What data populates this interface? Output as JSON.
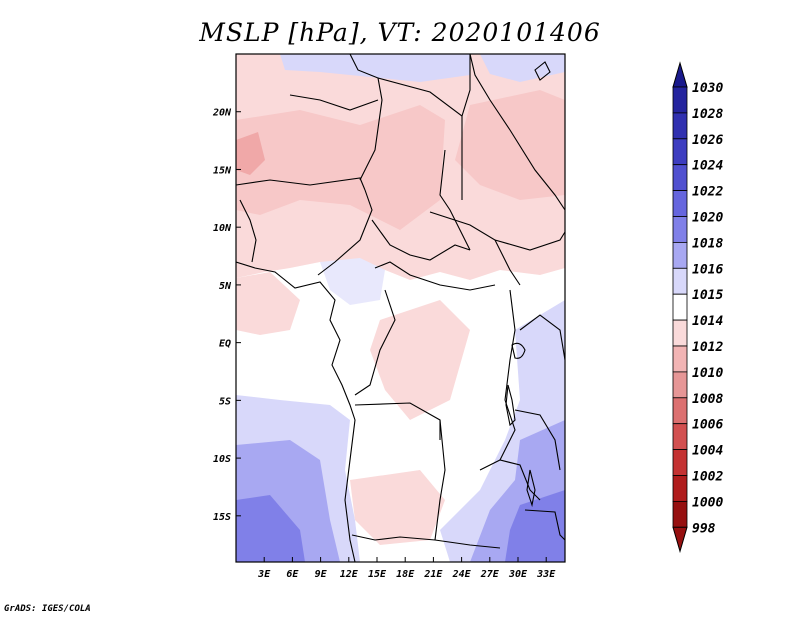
{
  "title": "MSLP [hPa], VT: 2020101406",
  "credit": "GrADS: IGES/COLA",
  "map": {
    "lon_range": [
      0,
      35
    ],
    "lat_range": [
      -19,
      25
    ],
    "lon_ticks": [
      "3E",
      "6E",
      "9E",
      "12E",
      "15E",
      "18E",
      "21E",
      "24E",
      "27E",
      "30E",
      "33E"
    ],
    "lat_ticks": [
      "20N",
      "15N",
      "10N",
      "5N",
      "EQ",
      "5S",
      "10S",
      "15S"
    ]
  },
  "colorbar": {
    "labels": [
      "1030",
      "1028",
      "1026",
      "1024",
      "1022",
      "1020",
      "1018",
      "1016",
      "1015",
      "1014",
      "1012",
      "1010",
      "1008",
      "1006",
      "1004",
      "1002",
      "1000",
      "998"
    ],
    "colors": [
      "#1a1a8c",
      "#24249e",
      "#3030b0",
      "#3d3dc0",
      "#5050d0",
      "#6666de",
      "#8080e8",
      "#a8a8f2",
      "#d8d8fa",
      "#ffffff",
      "#fadada",
      "#f2b4b4",
      "#e69696",
      "#dc7070",
      "#d25050",
      "#c43232",
      "#b01c1c",
      "#961010"
    ]
  }
}
